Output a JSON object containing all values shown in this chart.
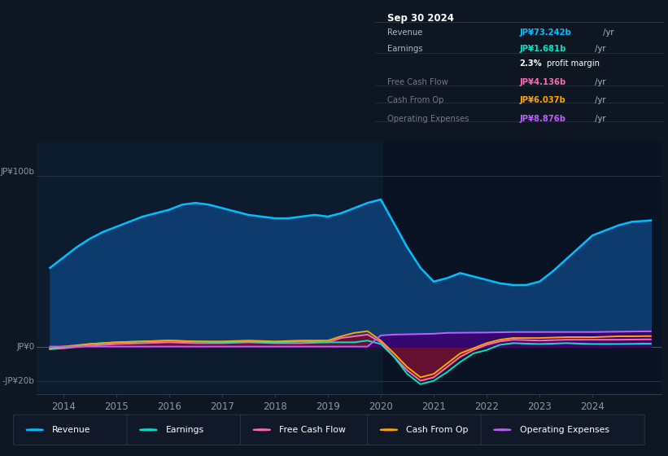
{
  "bg_color": "#0e1621",
  "plot_bg": "#0d1b2e",
  "title": "Sep 30 2024",
  "info_rows": [
    {
      "label": "Revenue",
      "value": "JP¥73.242b /yr",
      "value_color": "#00bfff"
    },
    {
      "label": "Earnings",
      "value": "JP¥1.681b /yr",
      "value_color": "#00e5c8"
    },
    {
      "label": "",
      "value": "2.3% profit margin",
      "value_color": "#ffffff"
    },
    {
      "label": "Free Cash Flow",
      "value": "JP¥4.136b /yr",
      "value_color": "#ff69b4"
    },
    {
      "label": "Cash From Op",
      "value": "JP¥6.037b /yr",
      "value_color": "#ffa500"
    },
    {
      "label": "Operating Expenses",
      "value": "JP¥8.876b /yr",
      "value_color": "#bf5fff"
    }
  ],
  "ylabel_top": "JP¥100b",
  "ylabel_zero": "JP¥0",
  "ylabel_bottom": "-JP¥20b",
  "xlim": [
    2013.5,
    2025.3
  ],
  "ylim": [
    -28,
    120
  ],
  "xticks": [
    2014,
    2015,
    2016,
    2017,
    2018,
    2019,
    2020,
    2021,
    2022,
    2023,
    2024
  ],
  "revenue_x": [
    2013.75,
    2014.0,
    2014.25,
    2014.5,
    2014.75,
    2015.0,
    2015.25,
    2015.5,
    2015.75,
    2016.0,
    2016.25,
    2016.5,
    2016.75,
    2017.0,
    2017.25,
    2017.5,
    2017.75,
    2018.0,
    2018.25,
    2018.5,
    2018.75,
    2019.0,
    2019.25,
    2019.5,
    2019.75,
    2020.0,
    2020.25,
    2020.5,
    2020.75,
    2021.0,
    2021.25,
    2021.5,
    2021.75,
    2022.0,
    2022.25,
    2022.5,
    2022.75,
    2023.0,
    2023.25,
    2023.5,
    2023.75,
    2024.0,
    2024.25,
    2024.5,
    2024.75,
    2025.0,
    2025.1
  ],
  "revenue_y": [
    46,
    52,
    58,
    63,
    67,
    70,
    73,
    76,
    78,
    80,
    83,
    84,
    83,
    81,
    79,
    77,
    76,
    75,
    75,
    76,
    77,
    76,
    78,
    81,
    84,
    86,
    72,
    58,
    46,
    38,
    40,
    43,
    41,
    39,
    37,
    36,
    36,
    38,
    44,
    51,
    58,
    65,
    68,
    71,
    73,
    73.5,
    73.8
  ],
  "earnings_x": [
    2013.75,
    2014.0,
    2014.5,
    2015.0,
    2015.5,
    2016.0,
    2016.5,
    2017.0,
    2017.5,
    2018.0,
    2018.5,
    2019.0,
    2019.5,
    2019.75,
    2020.0,
    2020.25,
    2020.5,
    2020.75,
    2021.0,
    2021.25,
    2021.5,
    2021.75,
    2022.0,
    2022.25,
    2022.5,
    2023.0,
    2023.5,
    2024.0,
    2024.5,
    2024.75,
    2025.0,
    2025.1
  ],
  "earnings_y": [
    -1.5,
    -0.5,
    1.5,
    2.5,
    3,
    3.5,
    3,
    2.5,
    3,
    2.5,
    3,
    2.5,
    2.5,
    3.5,
    1.5,
    -6,
    -16,
    -22,
    -20,
    -15,
    -9,
    -4,
    -2,
    1,
    2,
    1.5,
    2,
    1.5,
    1.5,
    1.6,
    1.7,
    1.7
  ],
  "fcf_x": [
    2013.75,
    2014.0,
    2014.5,
    2015.0,
    2015.5,
    2016.0,
    2016.5,
    2017.0,
    2017.5,
    2018.0,
    2018.5,
    2019.0,
    2019.25,
    2019.5,
    2019.75,
    2020.0,
    2020.25,
    2020.5,
    2020.75,
    2021.0,
    2021.25,
    2021.5,
    2021.75,
    2022.0,
    2022.25,
    2022.5,
    2023.0,
    2023.5,
    2024.0,
    2024.5,
    2024.75,
    2025.0,
    2025.1
  ],
  "fcf_y": [
    -1.5,
    -1,
    0.5,
    1.5,
    2,
    2.5,
    2,
    2,
    2.5,
    2,
    2,
    2.5,
    5,
    6,
    7,
    2.5,
    -6,
    -14,
    -20,
    -18,
    -12,
    -6,
    -2,
    1,
    3,
    4,
    3.5,
    4,
    4,
    4,
    4.1,
    4.2,
    4.2
  ],
  "cop_x": [
    2013.75,
    2014.0,
    2014.5,
    2015.0,
    2015.5,
    2016.0,
    2016.5,
    2017.0,
    2017.5,
    2018.0,
    2018.5,
    2019.0,
    2019.25,
    2019.5,
    2019.75,
    2020.0,
    2020.25,
    2020.5,
    2020.75,
    2021.0,
    2021.25,
    2021.5,
    2021.75,
    2022.0,
    2022.25,
    2022.5,
    2023.0,
    2023.5,
    2024.0,
    2024.5,
    2024.75,
    2025.0,
    2025.1
  ],
  "cop_y": [
    -1,
    0,
    1.5,
    2.5,
    3,
    3.5,
    3,
    3,
    3.5,
    3,
    3.5,
    3.5,
    6,
    8,
    9,
    3.5,
    -4,
    -12,
    -18,
    -16,
    -10,
    -4,
    -1,
    2,
    4,
    5,
    5,
    5.5,
    5.5,
    6,
    6,
    6.1,
    6.1
  ],
  "opex_x": [
    2013.75,
    2014.0,
    2015.0,
    2016.0,
    2017.0,
    2018.0,
    2019.0,
    2019.75,
    2020.0,
    2020.25,
    2021.0,
    2021.25,
    2022.0,
    2022.5,
    2023.0,
    2023.5,
    2024.0,
    2024.5,
    2024.75,
    2025.0,
    2025.1
  ],
  "opex_y": [
    0,
    0,
    0,
    0,
    0,
    0,
    0,
    0,
    6.5,
    7,
    7.5,
    8,
    8.2,
    8.5,
    8.5,
    8.5,
    8.5,
    8.7,
    8.8,
    8.9,
    8.9
  ],
  "legend_items": [
    {
      "label": "Revenue",
      "color": "#00bfff"
    },
    {
      "label": "Earnings",
      "color": "#00e5c8"
    },
    {
      "label": "Free Cash Flow",
      "color": "#ff69b4"
    },
    {
      "label": "Cash From Op",
      "color": "#ffa500"
    },
    {
      "label": "Operating Expenses",
      "color": "#bf5fff"
    }
  ],
  "dark_overlay_x": 2020.05,
  "revenue_color": "#00bfff",
  "revenue_fill": "#0d3b6e",
  "fcf_fill": "#6b1030",
  "opex_fill": "#3b0070",
  "earnings_color": "#00e5c8",
  "fcf_color": "#ff69b4",
  "cop_color": "#ffa500",
  "opex_color": "#bf5fff"
}
